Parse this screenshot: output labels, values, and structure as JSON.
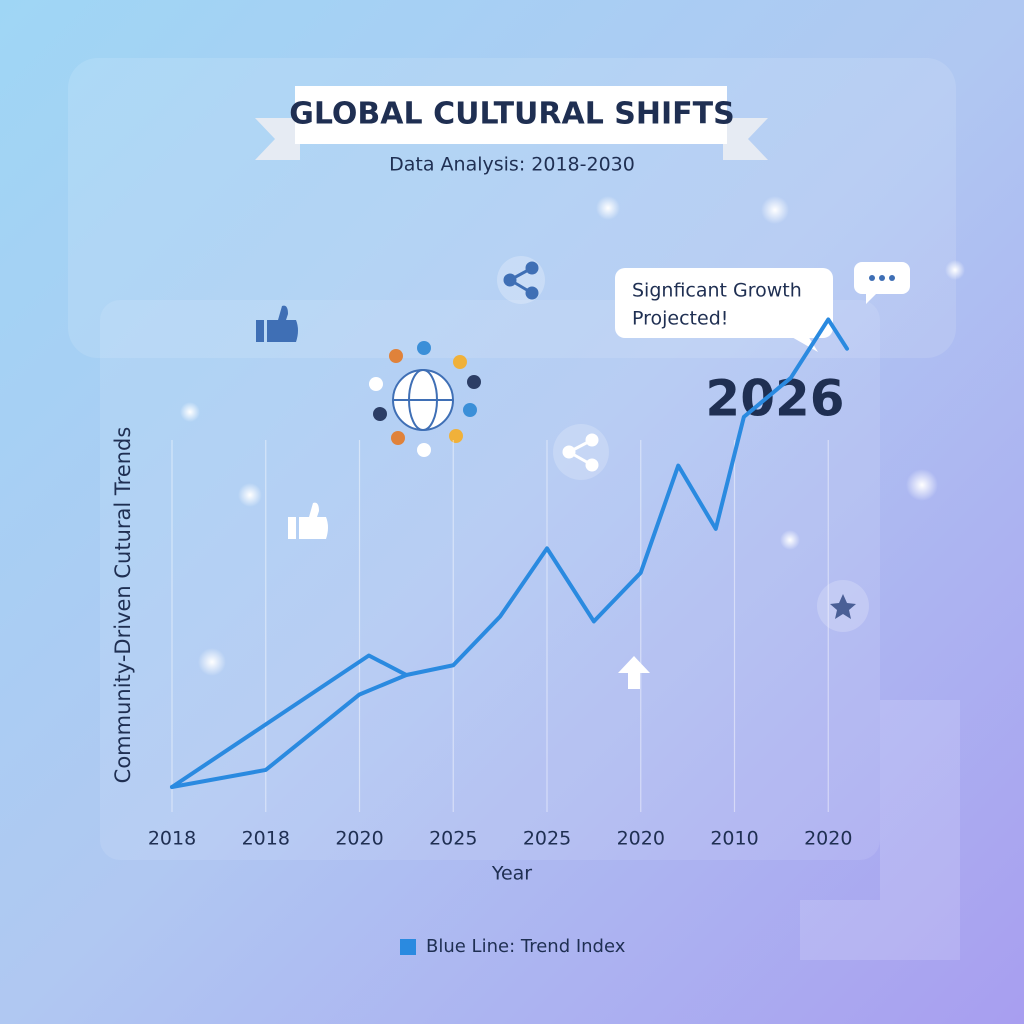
{
  "chart_data": {
    "type": "line",
    "title": "GLOBAL CULTURAL SHIFTS",
    "subtitle": "Data Analysis: 2018-2030",
    "x_label": "Year",
    "y_label": "Community-Driven Cutural Trends",
    "annotations": [
      "2026",
      [
        "Signficant Growth",
        "Projected!"
      ]
    ],
    "xlim": [
      0,
      7.2
    ],
    "ylim": [
      0,
      100
    ],
    "xticks": [
      {
        "value": 0,
        "label": "2018"
      },
      {
        "value": 1,
        "label": "2018"
      },
      {
        "value": 2,
        "label": "2020"
      },
      {
        "value": 3,
        "label": "2025"
      },
      {
        "value": 4,
        "label": "2025"
      },
      {
        "value": 5,
        "label": "2020"
      },
      {
        "value": 6,
        "label": "2010"
      },
      {
        "value": 7,
        "label": "2020"
      }
    ],
    "grid": true,
    "series": [
      {
        "name": "Blue Line: Trend Index",
        "color": "#2a8ae0",
        "x": [
          0,
          1,
          2,
          2.5,
          3,
          3.5,
          4,
          4.5,
          5,
          5.4,
          5.8,
          6.1,
          6.6,
          7,
          7.2
        ],
        "values": [
          0,
          3.5,
          19,
          23,
          25,
          35,
          49,
          34,
          44,
          66,
          53,
          76,
          84,
          96,
          90
        ]
      },
      {
        "color": "#2a8ae0",
        "x": [
          0,
          2.1,
          2.5
        ],
        "values": [
          0,
          27,
          23
        ]
      }
    ]
  }
}
